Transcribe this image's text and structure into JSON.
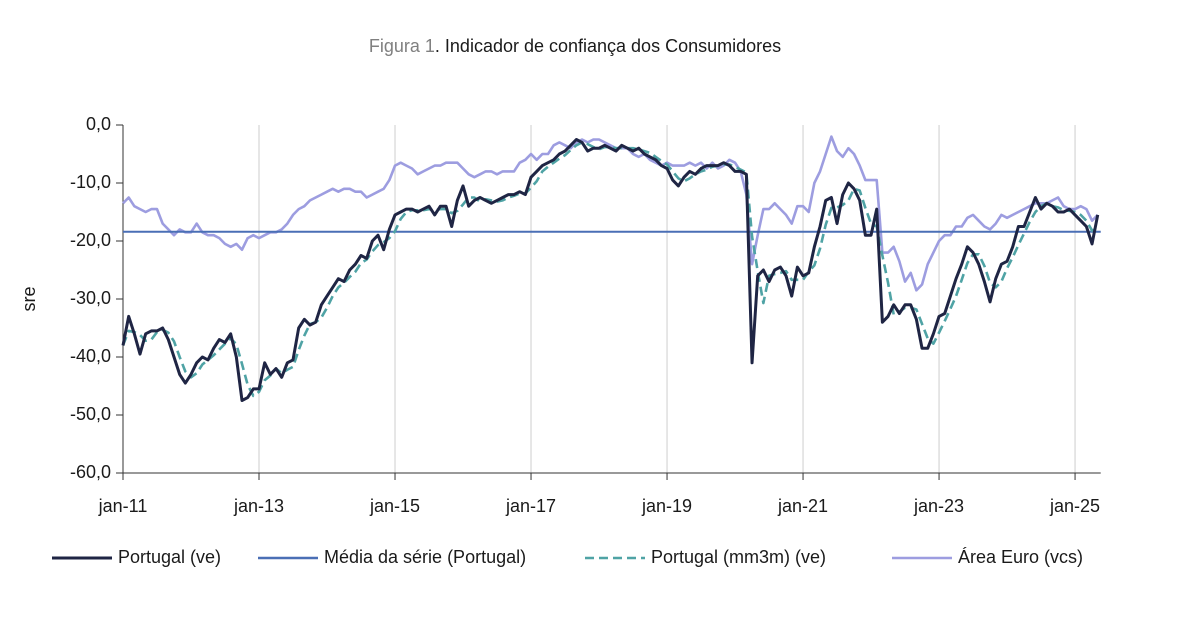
{
  "chart_data": {
    "type": "line",
    "figure_label": "Figura 1",
    "title": ". Indicador de confiança dos Consumidores",
    "y_label": "sre",
    "categories": [
      "jan-11",
      null,
      null,
      null,
      null,
      null,
      null,
      null,
      null,
      null,
      null,
      null,
      null,
      null,
      null,
      null,
      null,
      null,
      null,
      null,
      null,
      null,
      null,
      null,
      "jan-13",
      null,
      null,
      null,
      null,
      null,
      null,
      null,
      null,
      null,
      null,
      null,
      null,
      null,
      null,
      null,
      null,
      null,
      null,
      null,
      null,
      null,
      null,
      null,
      "jan-15",
      null,
      null,
      null,
      null,
      null,
      null,
      null,
      null,
      null,
      null,
      null,
      null,
      null,
      null,
      null,
      null,
      null,
      null,
      null,
      null,
      null,
      null,
      null,
      "jan-17",
      null,
      null,
      null,
      null,
      null,
      null,
      null,
      null,
      null,
      null,
      null,
      null,
      null,
      null,
      null,
      null,
      null,
      null,
      null,
      null,
      null,
      null,
      null,
      "jan-19",
      null,
      null,
      null,
      null,
      null,
      null,
      null,
      null,
      null,
      null,
      null,
      null,
      null,
      null,
      null,
      null,
      null,
      null,
      null,
      null,
      null,
      null,
      null,
      "jan-21",
      null,
      null,
      null,
      null,
      null,
      null,
      null,
      null,
      null,
      null,
      null,
      null,
      null,
      null,
      null,
      null,
      null,
      null,
      null,
      null,
      null,
      null,
      null,
      "jan-23",
      null,
      null,
      null,
      null,
      null,
      null,
      null,
      null,
      null,
      null,
      null,
      null,
      null,
      null,
      null,
      null,
      null,
      null,
      null,
      null,
      null,
      null,
      null,
      "jan-25",
      null,
      null,
      null,
      null
    ],
    "series": [
      {
        "name": "Portugal (ve)",
        "color": "#1f2544",
        "values": [
          -38,
          -33,
          -36,
          -39.5,
          -36,
          -35.5,
          -35.5,
          -35,
          -37,
          -40,
          -43,
          -44.5,
          -43,
          -41,
          -40,
          -40.5,
          -38.5,
          -37,
          -37.5,
          -36,
          -40,
          -47.5,
          -47,
          -45.5,
          -45.5,
          -41,
          -43,
          -42,
          -43.5,
          -41,
          -40.5,
          -35,
          -33.5,
          -34.5,
          -34,
          -31,
          -29.5,
          -28,
          -26.5,
          -27,
          -25,
          -24,
          -22.5,
          -23,
          -20,
          -19,
          -21.5,
          -18,
          -15.5,
          -15,
          -14.5,
          -14.5,
          -15,
          -14.5,
          -14,
          -15.5,
          -14,
          -14,
          -17.5,
          -13,
          -10.5,
          -14,
          -13,
          -12.5,
          -13,
          -13.5,
          -13,
          -12.5,
          -12,
          -12,
          -11.5,
          -12,
          -9,
          -8,
          -7,
          -6.5,
          -6,
          -5,
          -4.5,
          -3.5,
          -2.5,
          -3,
          -4.5,
          -4,
          -4,
          -3.5,
          -4,
          -4.5,
          -3.5,
          -4,
          -4.5,
          -4,
          -5,
          -5.5,
          -6,
          -7,
          -7.5,
          -9.5,
          -10.5,
          -9,
          -8,
          -8.5,
          -7.5,
          -7,
          -7,
          -7,
          -6.5,
          -7,
          -8,
          -8,
          -8.5,
          -41,
          -26,
          -25,
          -27,
          -25,
          -24.5,
          -26,
          -29.5,
          -24.5,
          -26,
          -25.5,
          -21,
          -17.5,
          -13,
          -12.5,
          -17,
          -12,
          -10,
          -11,
          -13,
          -19,
          -19,
          -14.5,
          -34,
          -33,
          -31,
          -32.5,
          -31,
          -31,
          -33.5,
          -38.5,
          -38.5,
          -36,
          -33,
          -32.5,
          -29.5,
          -26.5,
          -24,
          -21,
          -22,
          -24,
          -27,
          -30.5,
          -26.5,
          -24,
          -23.5,
          -21,
          -17.5,
          -17.5,
          -15,
          -12.5,
          -14.5,
          -13.5,
          -14,
          -15,
          -15,
          -14.5,
          -15.5,
          -16.5,
          -17.5,
          -20.5,
          -15.5
        ]
      },
      {
        "name": "Média da série (Portugal)",
        "color": "#4a6fb5",
        "style": "hline",
        "value": -18.4
      },
      {
        "name": "Portugal (mm3m) (ve)",
        "color": "#4fa3a5",
        "dashed": true,
        "values": [
          -38,
          -35.5,
          -35.7,
          -36.2,
          -37.2,
          -37,
          -35.7,
          -35.3,
          -35.8,
          -37.3,
          -40,
          -42.5,
          -43.5,
          -42.8,
          -41.3,
          -40.5,
          -39.7,
          -38.7,
          -37.7,
          -36.8,
          -37.8,
          -41.2,
          -44.8,
          -46.7,
          -46,
          -44,
          -43.2,
          -42,
          -42.8,
          -42.2,
          -41.7,
          -38.8,
          -36.3,
          -34.3,
          -34,
          -33.2,
          -31.5,
          -29.5,
          -28,
          -27.2,
          -26.2,
          -25.3,
          -23.8,
          -23.2,
          -21.8,
          -20.7,
          -20.2,
          -19.5,
          -18.3,
          -16.2,
          -15,
          -14.7,
          -14.7,
          -14.7,
          -14.5,
          -14.7,
          -14.5,
          -14.5,
          -15.2,
          -14.8,
          -13.7,
          -12.5,
          -12.5,
          -13.2,
          -12.8,
          -13,
          -13.2,
          -13,
          -12.5,
          -12.2,
          -11.8,
          -11.8,
          -10.8,
          -9.7,
          -8,
          -7.2,
          -6.5,
          -5.8,
          -5.2,
          -4.3,
          -3.5,
          -3,
          -3.3,
          -3.8,
          -4.2,
          -3.8,
          -3.8,
          -4,
          -4,
          -4,
          -4,
          -4.2,
          -4.5,
          -4.8,
          -5.5,
          -6.2,
          -6.8,
          -8,
          -9.2,
          -9.7,
          -9.2,
          -8.5,
          -8,
          -7.7,
          -7.2,
          -7,
          -6.8,
          -6.8,
          -7.2,
          -7.7,
          -8.2,
          -19.2,
          -25.2,
          -30.7,
          -26,
          -25.7,
          -25.5,
          -25.2,
          -26.7,
          -26.7,
          -26.7,
          -25.3,
          -24.2,
          -21.3,
          -17.2,
          -14.3,
          -14.2,
          -13.8,
          -13,
          -11,
          -11.3,
          -14.3,
          -17,
          -17.5,
          -22.5,
          -27.2,
          -32.7,
          -32.2,
          -31.5,
          -31.5,
          -31.8,
          -34.3,
          -36.8,
          -37.7,
          -35.8,
          -33.8,
          -31.7,
          -29.5,
          -26.7,
          -23.8,
          -22.3,
          -22.3,
          -24.3,
          -27.2,
          -28,
          -27,
          -24.7,
          -22.8,
          -20.7,
          -18.7,
          -16.7,
          -15,
          -14,
          -13.5,
          -14,
          -14.2,
          -14.7,
          -14.8,
          -15,
          -15.5,
          -16.5,
          -18.2,
          -17.8
        ]
      },
      {
        "name": "Área Euro (vcs)",
        "color": "#9d9de0",
        "values": [
          -13.5,
          -12.5,
          -14,
          -14.5,
          -15,
          -14.5,
          -14.5,
          -17,
          -18,
          -19,
          -18,
          -18.5,
          -18.5,
          -17,
          -18.5,
          -19,
          -19,
          -19.5,
          -20.5,
          -21,
          -20.5,
          -21.5,
          -19.5,
          -19,
          -19.5,
          -19,
          -18.5,
          -18.5,
          -18,
          -17,
          -15.5,
          -14.5,
          -14,
          -13,
          -12.5,
          -12,
          -11.5,
          -11,
          -11.5,
          -11,
          -11,
          -11.5,
          -11.5,
          -12.5,
          -12,
          -11.5,
          -11,
          -9.5,
          -7,
          -6.5,
          -7,
          -7.5,
          -8.5,
          -8,
          -7.5,
          -7,
          -7,
          -6.5,
          -6.5,
          -6.5,
          -7.5,
          -8.5,
          -9,
          -8.5,
          -8,
          -8,
          -8.5,
          -8,
          -8,
          -8,
          -6.5,
          -6,
          -5,
          -6,
          -5,
          -5,
          -3.5,
          -3,
          -3.5,
          -4,
          -3,
          -2.5,
          -3,
          -2.5,
          -2.5,
          -3,
          -3.5,
          -4,
          -4,
          -4,
          -5,
          -5.5,
          -5,
          -6,
          -6.5,
          -7,
          -6.5,
          -7,
          -7,
          -7,
          -6.5,
          -7,
          -6.5,
          -7.5,
          -6.5,
          -7.5,
          -7,
          -6,
          -6.5,
          -8,
          -12,
          -24,
          -19,
          -14.5,
          -14.5,
          -13.5,
          -14.5,
          -15.5,
          -17,
          -14,
          -14,
          -15,
          -10,
          -8,
          -5,
          -2,
          -4.5,
          -5.5,
          -4,
          -5,
          -7,
          -9.5,
          -9.5,
          -9.5,
          -22,
          -22,
          -21,
          -23.5,
          -27,
          -25.5,
          -28.5,
          -27.5,
          -24,
          -22,
          -20,
          -19,
          -19,
          -17.5,
          -17.5,
          -16,
          -15.5,
          -16.5,
          -17.5,
          -18,
          -17,
          -15.5,
          -16,
          -15.5,
          -15,
          -14.5,
          -14,
          -13.5,
          -13.5,
          -13.5,
          -13,
          -12.5,
          -14,
          -14.5,
          -14.5,
          -14,
          -14.5,
          -16.5,
          -15.5
        ]
      }
    ],
    "ylim": [
      -60,
      0
    ],
    "yticks": [
      {
        "value": 0,
        "label": "0,0"
      },
      {
        "value": -10,
        "label": "-10,0"
      },
      {
        "value": -20,
        "label": "-20,0"
      },
      {
        "value": -30,
        "label": "-30,0"
      },
      {
        "value": -40,
        "label": "-40,0"
      },
      {
        "value": -50,
        "label": "-50,0"
      },
      {
        "value": -60,
        "label": "-60,0"
      }
    ],
    "x_grid": true,
    "legend": "bottom"
  }
}
